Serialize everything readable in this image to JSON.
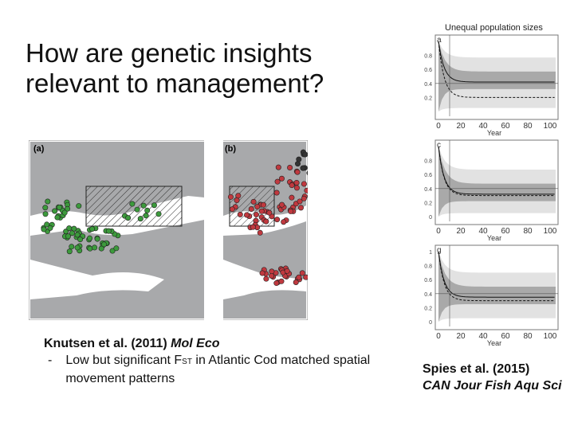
{
  "title": "How are genetic insights relevant to management?",
  "left_figure": {
    "panels": [
      "(a)",
      "(b)"
    ]
  },
  "left_caption": {
    "citation": "Knutsen et al. (2011)",
    "journal": "Mol Eco",
    "bullet": "-",
    "text_before": "Low but significant F",
    "subscript": "ST",
    "text_after": "in Atlantic Cod matched spatial movement patterns"
  },
  "right_figure": {
    "title": "Unequal population sizes",
    "panels": [
      {
        "label": "a",
        "yticks": [
          "0.2",
          "0.4",
          "0.6",
          "0.8"
        ],
        "xticks": [
          "0",
          "20",
          "40",
          "60",
          "80",
          "100"
        ],
        "xlabel": "Year"
      },
      {
        "label": "c",
        "yticks": [
          "0",
          "0.2",
          "0.4",
          "0.6",
          "0.8"
        ],
        "xticks": [
          "0",
          "20",
          "40",
          "60",
          "80",
          "100"
        ],
        "xlabel": "Year"
      },
      {
        "label": "g",
        "yticks": [
          "0",
          "0.2",
          "0.4",
          "0.6",
          "0.8",
          "1"
        ],
        "xticks": [
          "0",
          "20",
          "40",
          "60",
          "80",
          "100"
        ],
        "xlabel": "Year"
      }
    ]
  },
  "right_caption": {
    "citation": "Spies et al. (2015)",
    "journal": "CAN Jour Fish Aqu Sci"
  }
}
